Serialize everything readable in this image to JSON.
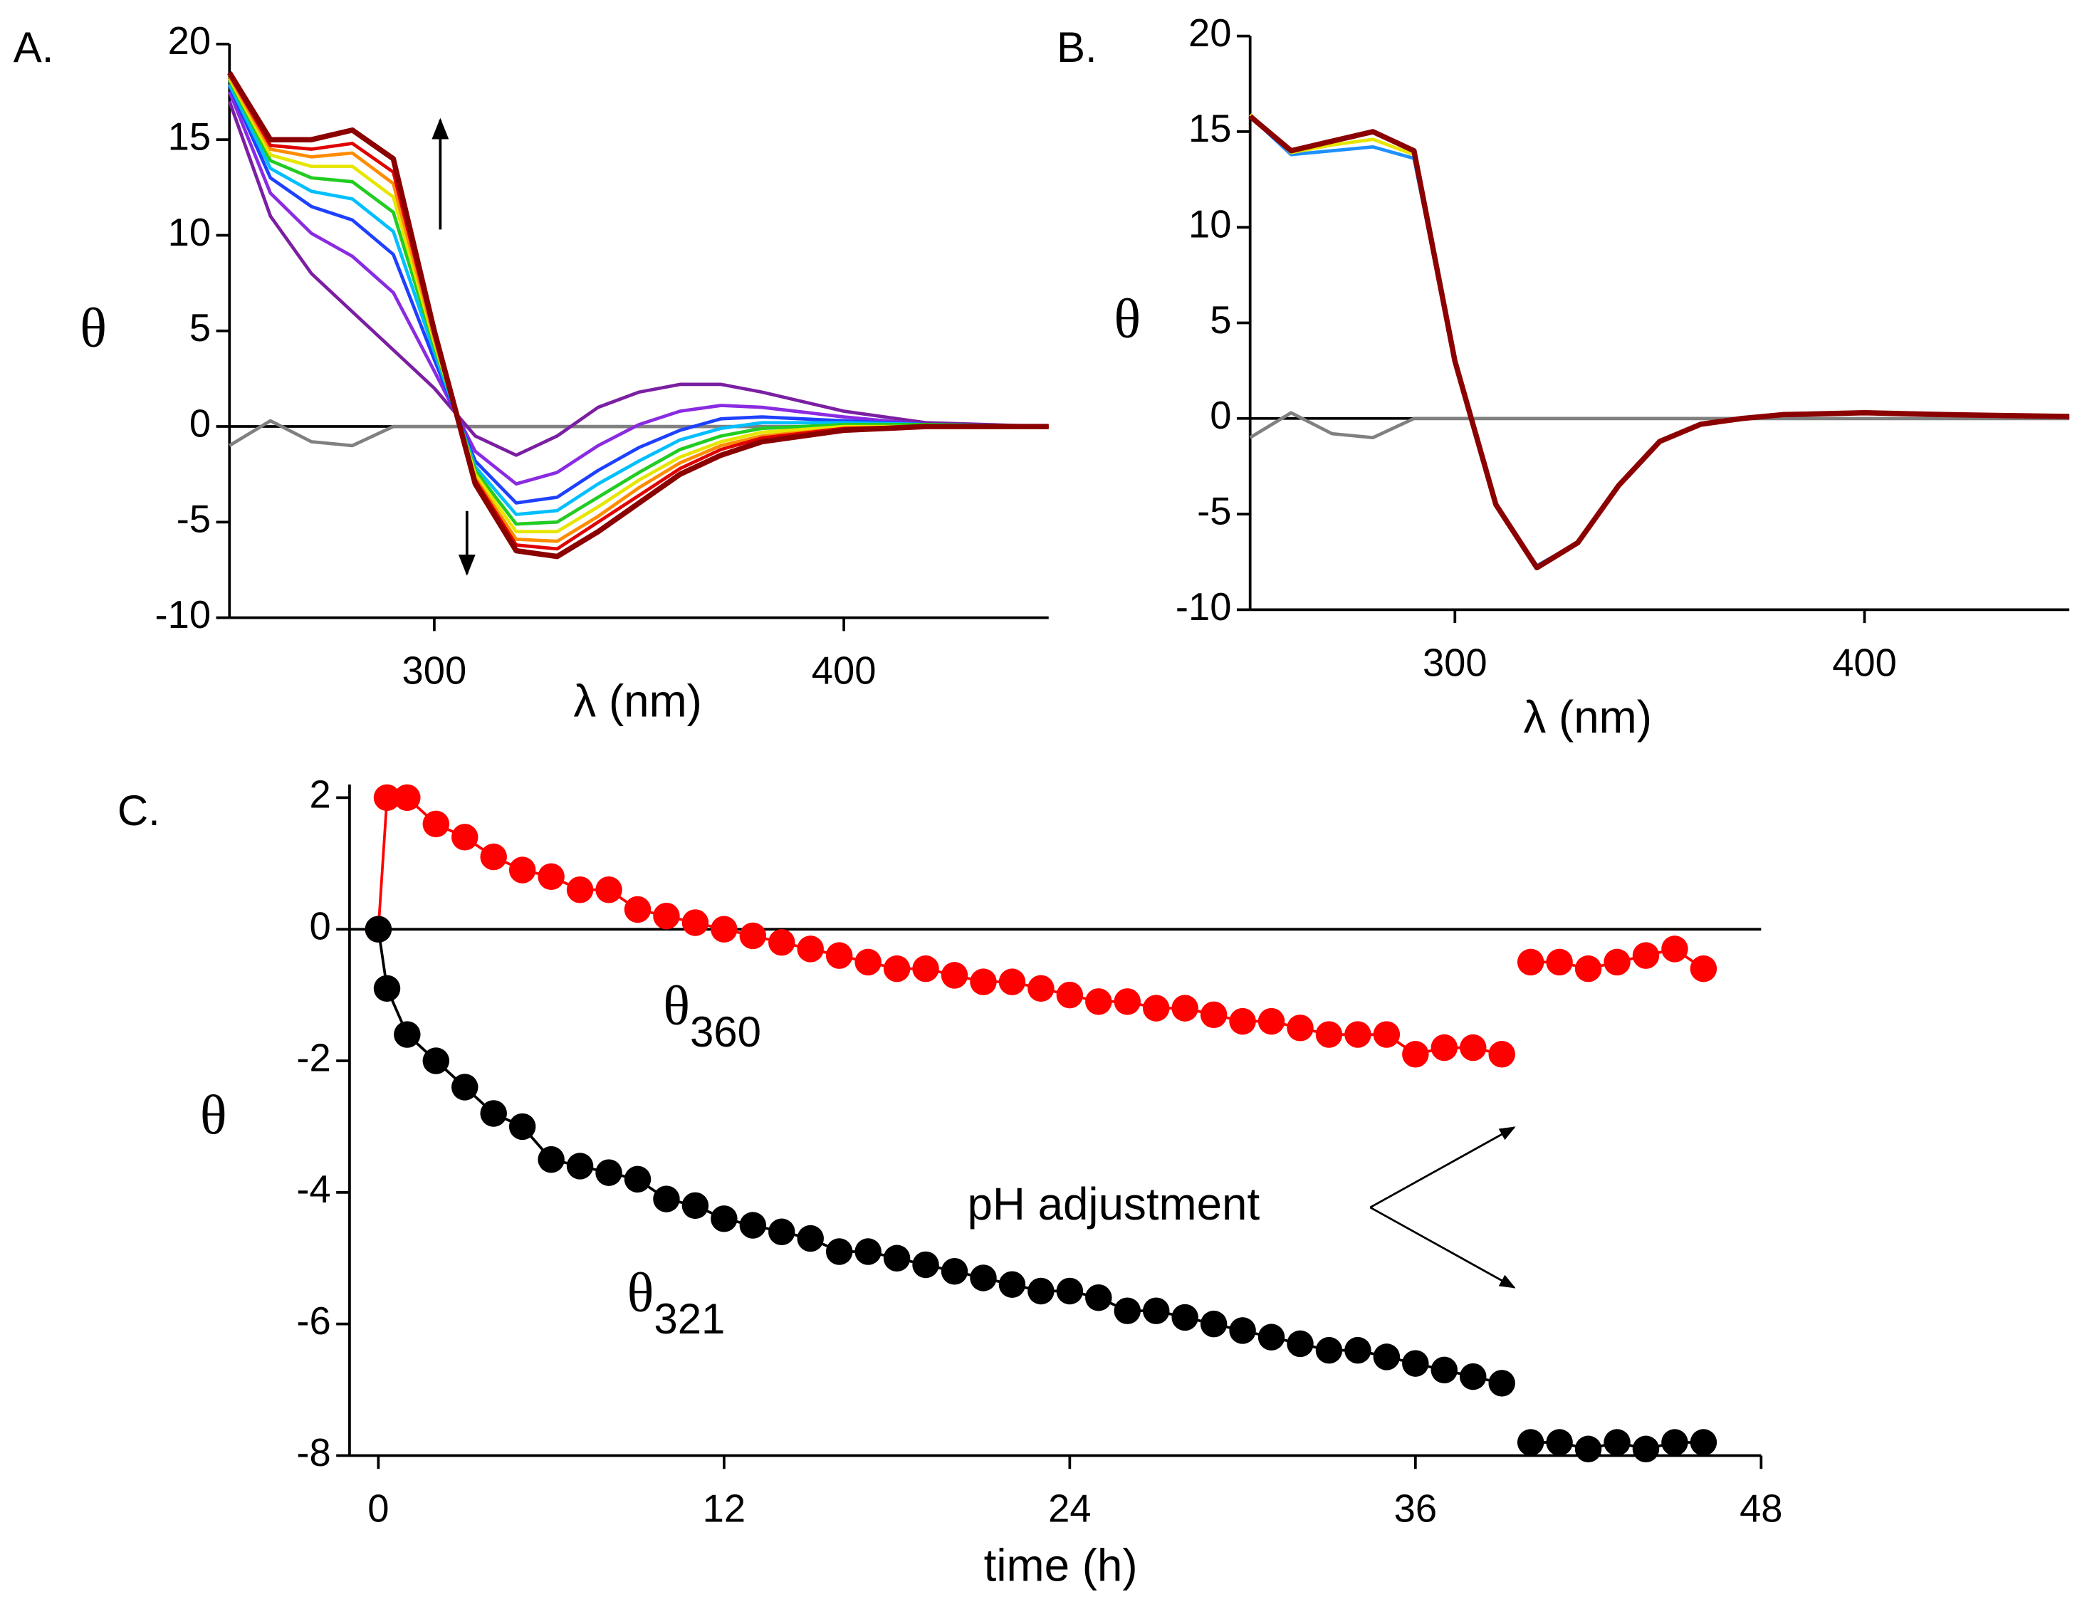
{
  "chart_data": [
    {
      "type": "line",
      "panel_label": "A.",
      "ylabel": "θ",
      "xlabel": "λ (nm)",
      "x": [
        250,
        260,
        270,
        280,
        290,
        300,
        310,
        320,
        330,
        340,
        350,
        360,
        370,
        380,
        400,
        420,
        450
      ],
      "xlim": [
        250,
        450
      ],
      "xticks": [
        300,
        400
      ],
      "ylim": [
        -10,
        20
      ],
      "yticks": [
        -10,
        -5,
        0,
        5,
        10,
        15,
        20
      ],
      "zero_line": true,
      "markers": false,
      "series": [
        {
          "color": "#808080",
          "values": [
            -1,
            0.3,
            -0.8,
            -1,
            0,
            0,
            0,
            0,
            0,
            0,
            0,
            0,
            0,
            0,
            0,
            0,
            0
          ]
        },
        {
          "color": "#7b1fa2",
          "values": [
            17,
            11,
            8,
            6,
            4,
            2,
            -0.5,
            -1.5,
            -0.5,
            1,
            1.8,
            2.2,
            2.2,
            1.8,
            0.8,
            0.2,
            0
          ]
        },
        {
          "color": "#8a2be2",
          "values": [
            17.5,
            12.2,
            10.1,
            8.9,
            7,
            2.9,
            -1.3,
            -3,
            -2.4,
            -1,
            0.1,
            0.8,
            1.1,
            1,
            0.5,
            0.1,
            0
          ]
        },
        {
          "color": "#1e40ff",
          "values": [
            17.8,
            13,
            11.5,
            10.8,
            9,
            3.5,
            -1.8,
            -4,
            -3.7,
            -2.3,
            -1.1,
            -0.2,
            0.4,
            0.5,
            0.3,
            0.1,
            0
          ]
        },
        {
          "color": "#00bfff",
          "values": [
            17.9,
            13.5,
            12.3,
            11.9,
            10.2,
            3.9,
            -2.1,
            -4.6,
            -4.4,
            -3,
            -1.8,
            -0.7,
            -0.1,
            0.2,
            0.2,
            0.1,
            0
          ]
        },
        {
          "color": "#22cc22",
          "values": [
            18.1,
            13.9,
            13,
            12.8,
            11.2,
            4.2,
            -2.3,
            -5.1,
            -5,
            -3.7,
            -2.4,
            -1.2,
            -0.5,
            -0.1,
            0.1,
            0.1,
            0
          ]
        },
        {
          "color": "#e6e600",
          "values": [
            18.2,
            14.2,
            13.6,
            13.6,
            12,
            4.4,
            -2.5,
            -5.5,
            -5.5,
            -4.2,
            -2.8,
            -1.6,
            -0.8,
            -0.3,
            0,
            0,
            0
          ]
        },
        {
          "color": "#ff8c00",
          "values": [
            18.3,
            14.5,
            14.1,
            14.3,
            12.7,
            4.6,
            -2.7,
            -5.9,
            -6,
            -4.7,
            -3.2,
            -1.9,
            -1,
            -0.5,
            -0.1,
            0,
            0
          ]
        },
        {
          "color": "#e00000",
          "values": [
            18.4,
            14.7,
            14.5,
            14.8,
            13.3,
            4.8,
            -2.8,
            -6.2,
            -6.4,
            -5,
            -3.6,
            -2.2,
            -1.2,
            -0.6,
            -0.1,
            0,
            0
          ]
        },
        {
          "color": "#8b0000",
          "values": [
            18.5,
            15,
            15,
            15.5,
            14,
            5,
            -3,
            -6.5,
            -6.8,
            -5.5,
            -4,
            -2.5,
            -1.5,
            -0.8,
            -0.2,
            0,
            0
          ]
        }
      ]
    },
    {
      "type": "line",
      "panel_label": "B.",
      "ylabel": "θ",
      "xlabel": "λ (nm)",
      "x": [
        250,
        260,
        270,
        280,
        290,
        300,
        310,
        320,
        330,
        340,
        350,
        360,
        370,
        380,
        400,
        420,
        450
      ],
      "xlim": [
        250,
        450
      ],
      "xticks": [
        300,
        400
      ],
      "ylim": [
        -10,
        20
      ],
      "yticks": [
        -10,
        -5,
        0,
        5,
        10,
        15,
        20
      ],
      "zero_line": true,
      "markers": false,
      "series": [
        {
          "color": "#808080",
          "values": [
            -1,
            0.3,
            -0.8,
            -1,
            0,
            0,
            0,
            0,
            0,
            0,
            0,
            0,
            0,
            0,
            0,
            0,
            0
          ]
        },
        {
          "color": "#1e90ff",
          "values": [
            15.8,
            13.8,
            14,
            14.2,
            13.6,
            3,
            -4.5,
            -7.7,
            -6.5,
            -3.5,
            -1.2,
            -0.3,
            0,
            0.2,
            0.3,
            0.2,
            0.1
          ]
        },
        {
          "color": "#e6e600",
          "values": [
            15.9,
            13.9,
            14.3,
            14.6,
            13.8,
            3,
            -4.5,
            -7.8,
            -6.5,
            -3.5,
            -1.2,
            -0.3,
            0,
            0.2,
            0.3,
            0.2,
            0.1
          ]
        },
        {
          "color": "#8b0000",
          "values": [
            15.8,
            14,
            14.5,
            15,
            14,
            3,
            -4.5,
            -7.8,
            -6.5,
            -3.5,
            -1.2,
            -0.3,
            0,
            0.2,
            0.3,
            0.2,
            0.1
          ]
        }
      ]
    },
    {
      "type": "line",
      "panel_label": "C.",
      "ylabel": "θ",
      "xlabel": "time (h)",
      "x": [
        0,
        0.3,
        1,
        2,
        3,
        4,
        5,
        6,
        7,
        8,
        9,
        10,
        11,
        12,
        13,
        14,
        15,
        16,
        17,
        18,
        19,
        20,
        21,
        22,
        23,
        24,
        25,
        26,
        27,
        28,
        29,
        30,
        31,
        32,
        33,
        34,
        35,
        36,
        37,
        38,
        39,
        null,
        40,
        41,
        42,
        43,
        44,
        45,
        46
      ],
      "xlim": [
        -1,
        48
      ],
      "xticks": [
        0,
        12,
        24,
        36,
        48
      ],
      "ylim": [
        -8,
        2.2
      ],
      "yticks": [
        -8,
        -6,
        -4,
        -2,
        0,
        2
      ],
      "zero_line": true,
      "markers": true,
      "series": [
        {
          "color": "#ff0000",
          "values": [
            0,
            2,
            2,
            1.6,
            1.4,
            1.1,
            0.9,
            0.8,
            0.6,
            0.6,
            0.3,
            0.2,
            0.1,
            0,
            -0.1,
            -0.2,
            -0.3,
            -0.4,
            -0.5,
            -0.6,
            -0.6,
            -0.7,
            -0.8,
            -0.8,
            -0.9,
            -1,
            -1.1,
            -1.1,
            -1.2,
            -1.2,
            -1.3,
            -1.4,
            -1.4,
            -1.5,
            -1.6,
            -1.6,
            -1.6,
            -1.9,
            -1.8,
            -1.8,
            -1.9,
            null,
            -0.5,
            -0.5,
            -0.6,
            -0.5,
            -0.4,
            -0.3,
            -0.6
          ]
        },
        {
          "color": "#000000",
          "values": [
            0,
            -0.9,
            -1.6,
            -2,
            -2.4,
            -2.8,
            -3,
            -3.5,
            -3.6,
            -3.7,
            -3.8,
            -4.1,
            -4.2,
            -4.4,
            -4.5,
            -4.6,
            -4.7,
            -4.9,
            -4.9,
            -5,
            -5.1,
            -5.2,
            -5.3,
            -5.4,
            -5.5,
            -5.5,
            -5.6,
            -5.8,
            -5.8,
            -5.9,
            -6,
            -6.1,
            -6.2,
            -6.3,
            -6.4,
            -6.4,
            -6.5,
            -6.6,
            -6.7,
            -6.8,
            -6.9,
            null,
            -7.8,
            -7.8,
            -7.9,
            -7.8,
            -7.9,
            -7.8,
            -7.8
          ]
        }
      ],
      "annotations": [
        {
          "text": "θ",
          "sub": "360"
        },
        {
          "text": "θ",
          "sub": "321"
        },
        {
          "text": "pH adjustment"
        }
      ]
    }
  ]
}
